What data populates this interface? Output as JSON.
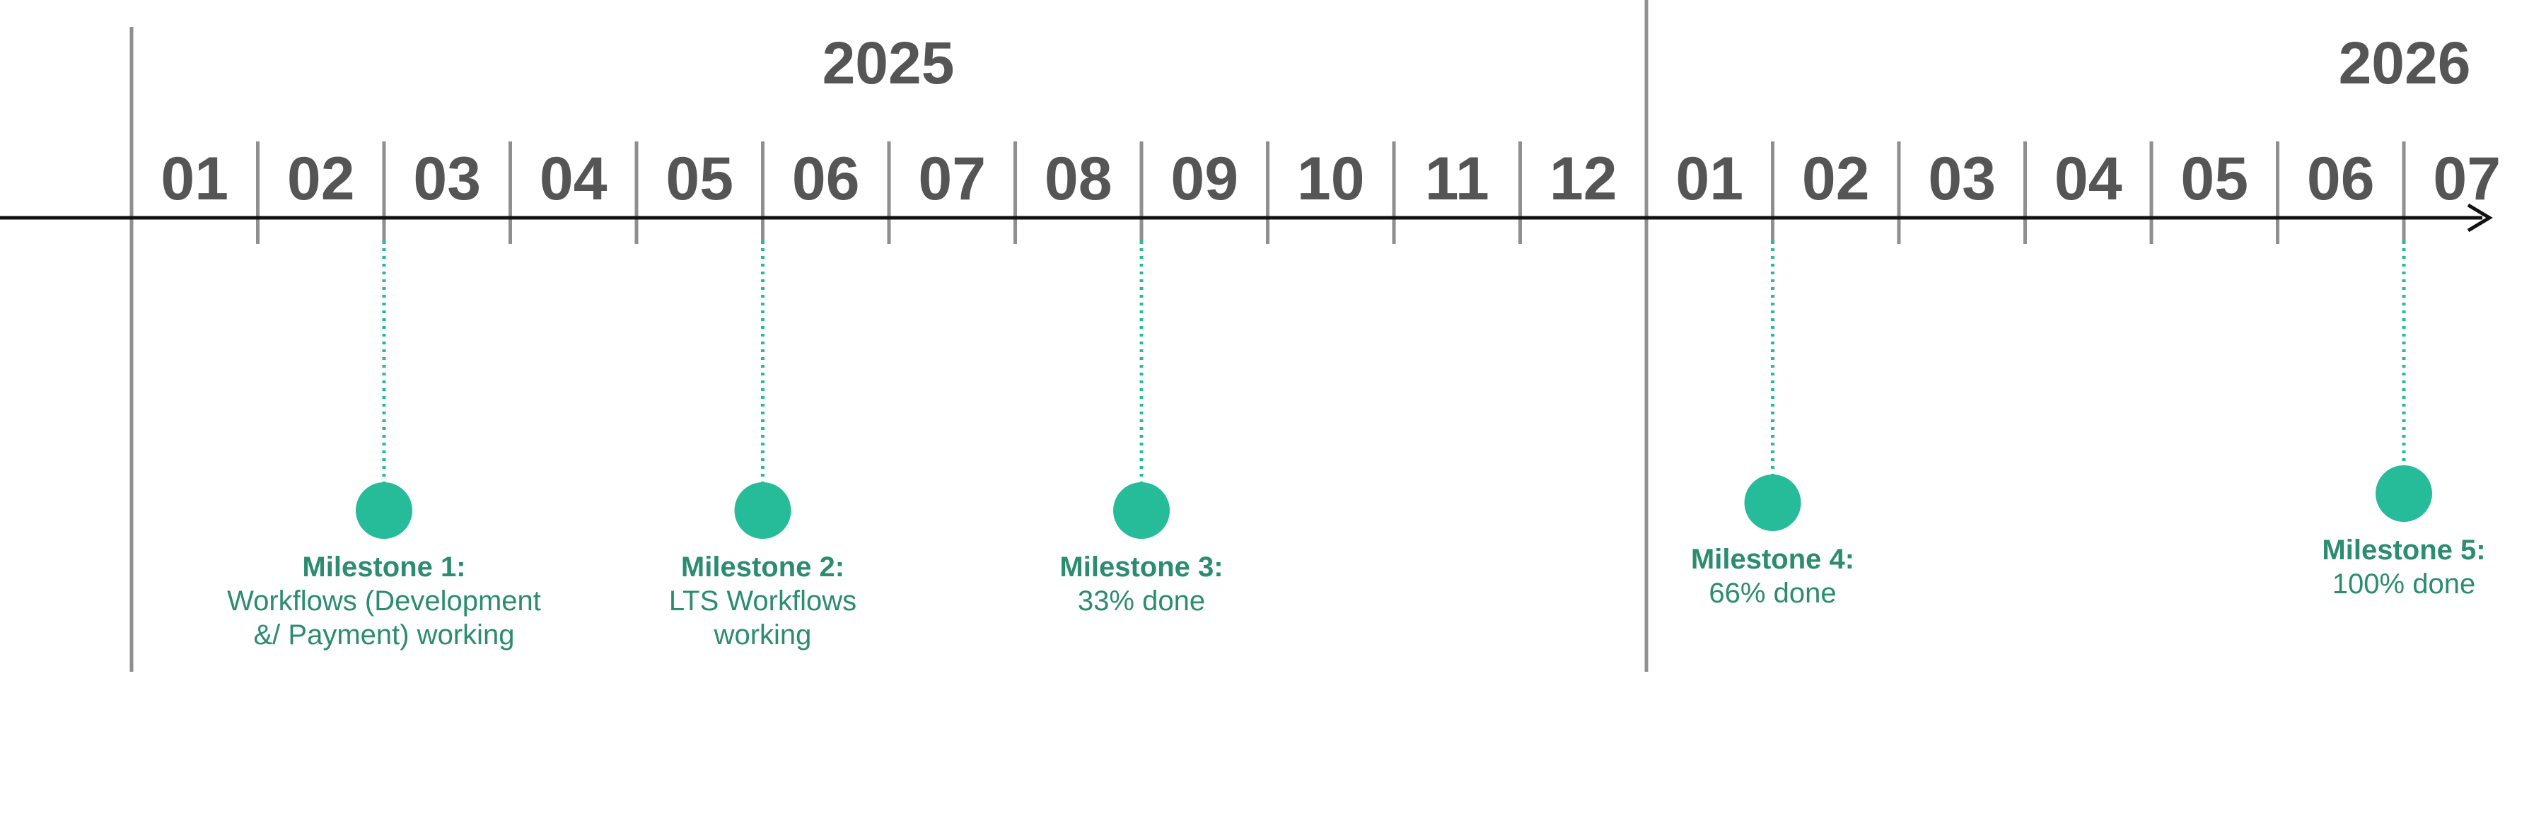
{
  "colors": {
    "axis": "#111111",
    "divider": "#8f8f8f",
    "label": "#555555",
    "milestone_dot": "#26bc9a",
    "milestone_line": "#26bc9a",
    "milestone_text": "#2b8c6e"
  },
  "years": [
    {
      "label": "2025"
    },
    {
      "label": "2026"
    }
  ],
  "months": [
    "01",
    "02",
    "03",
    "04",
    "05",
    "06",
    "07",
    "08",
    "09",
    "10",
    "11",
    "12",
    "01",
    "02",
    "03",
    "04",
    "05",
    "06",
    "07"
  ],
  "milestones": [
    {
      "title": "Milestone 1:",
      "lines": [
        "Workflows (Development",
        "&/ Payment) working"
      ],
      "boundary": 2
    },
    {
      "title": "Milestone 2:",
      "lines": [
        "LTS Workflows",
        "working"
      ],
      "boundary": 5
    },
    {
      "title": "Milestone 3:",
      "lines": [
        "33% done"
      ],
      "boundary": 8
    },
    {
      "title": "Milestone 4:",
      "lines": [
        "66% done"
      ],
      "boundary": 13
    },
    {
      "title": "Milestone 5:",
      "lines": [
        "100% done"
      ],
      "boundary": 18
    }
  ]
}
